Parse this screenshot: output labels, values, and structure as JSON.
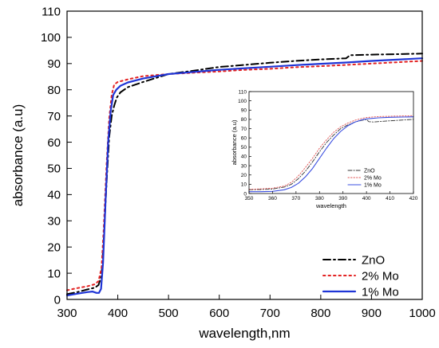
{
  "chart_data": [
    {
      "type": "line",
      "xlabel": "wavelength,nm",
      "ylabel": "absorbance (a.u)",
      "xlim": [
        300,
        1000
      ],
      "ylim": [
        0,
        110
      ],
      "xticks": [
        300,
        400,
        500,
        600,
        700,
        800,
        900,
        1000
      ],
      "yticks": [
        0,
        10,
        20,
        30,
        40,
        50,
        60,
        70,
        80,
        90,
        100,
        110
      ],
      "grid": false,
      "legend_position": "bottom-right",
      "series": [
        {
          "name": "ZnO",
          "style": "dashdot",
          "color": "#000000",
          "points": [
            [
              300,
              2
            ],
            [
              320,
              2.8
            ],
            [
              340,
              3.8
            ],
            [
              355,
              4.5
            ],
            [
              362,
              5.5
            ],
            [
              368,
              9
            ],
            [
              372,
              22
            ],
            [
              378,
              45
            ],
            [
              383,
              62
            ],
            [
              388,
              70
            ],
            [
              393,
              74
            ],
            [
              398,
              77
            ],
            [
              405,
              79
            ],
            [
              420,
              81
            ],
            [
              450,
              83
            ],
            [
              500,
              86
            ],
            [
              550,
              87.3
            ],
            [
              600,
              88.7
            ],
            [
              650,
              89.5
            ],
            [
              700,
              90.3
            ],
            [
              750,
              91
            ],
            [
              800,
              91.6
            ],
            [
              850,
              92
            ],
            [
              858,
              93.2
            ],
            [
              900,
              93.4
            ],
            [
              950,
              93.6
            ],
            [
              1000,
              93.8
            ]
          ]
        },
        {
          "name": "2% Mo",
          "style": "dotted",
          "color": "#e32222",
          "points": [
            [
              300,
              3.5
            ],
            [
              320,
              4.3
            ],
            [
              340,
              5
            ],
            [
              355,
              5.8
            ],
            [
              362,
              7
            ],
            [
              368,
              12
            ],
            [
              372,
              26
            ],
            [
              378,
              52
            ],
            [
              383,
              69
            ],
            [
              388,
              78
            ],
            [
              393,
              82
            ],
            [
              400,
              83
            ],
            [
              420,
              84
            ],
            [
              450,
              85.2
            ],
            [
              500,
              86
            ],
            [
              550,
              86.5
            ],
            [
              600,
              87
            ],
            [
              650,
              87.6
            ],
            [
              700,
              88
            ],
            [
              750,
              88.6
            ],
            [
              800,
              89
            ],
            [
              850,
              89.5
            ],
            [
              900,
              90
            ],
            [
              950,
              90.5
            ],
            [
              1000,
              91
            ]
          ]
        },
        {
          "name": "1% Mo",
          "style": "solid",
          "color": "#1f35d6",
          "points": [
            [
              300,
              1.5
            ],
            [
              320,
              2.2
            ],
            [
              340,
              2.8
            ],
            [
              350,
              3
            ],
            [
              358,
              2.5
            ],
            [
              363,
              2.5
            ],
            [
              367,
              4
            ],
            [
              371,
              14
            ],
            [
              376,
              38
            ],
            [
              381,
              60
            ],
            [
              386,
              72
            ],
            [
              391,
              78
            ],
            [
              397,
              80
            ],
            [
              405,
              81.5
            ],
            [
              420,
              82.8
            ],
            [
              450,
              84.3
            ],
            [
              500,
              86
            ],
            [
              550,
              86.8
            ],
            [
              600,
              87.6
            ],
            [
              650,
              88.2
            ],
            [
              700,
              88.8
            ],
            [
              750,
              89.4
            ],
            [
              800,
              89.9
            ],
            [
              850,
              90.4
            ],
            [
              900,
              91
            ],
            [
              950,
              91.5
            ],
            [
              1000,
              92
            ]
          ]
        }
      ]
    },
    {
      "type": "line",
      "xlabel": "wavelength",
      "ylabel": "absorbance (a.u)",
      "xlim": [
        350,
        420
      ],
      "ylim": [
        0,
        110
      ],
      "xticks": [
        350,
        360,
        370,
        380,
        390,
        400,
        410,
        420
      ],
      "yticks": [
        0,
        10,
        20,
        30,
        40,
        50,
        60,
        70,
        80,
        90,
        100,
        110
      ],
      "grid": false,
      "legend_position": "bottom-right",
      "series": [
        {
          "name": "ZnO",
          "style": "dashdot",
          "color": "#333333",
          "points": [
            [
              350,
              4
            ],
            [
              355,
              4.3
            ],
            [
              360,
              4.8
            ],
            [
              365,
              7
            ],
            [
              368,
              10
            ],
            [
              371,
              16
            ],
            [
              374,
              24
            ],
            [
              377,
              34
            ],
            [
              380,
              45
            ],
            [
              383,
              55
            ],
            [
              386,
              63
            ],
            [
              389,
              70
            ],
            [
              392,
              74
            ],
            [
              395,
              77
            ],
            [
              398,
              79
            ],
            [
              400,
              80
            ],
            [
              401,
              77.5
            ],
            [
              403,
              77.2
            ],
            [
              410,
              78.5
            ],
            [
              420,
              80
            ]
          ]
        },
        {
          "name": "2% Mo",
          "style": "dotted",
          "color": "#e05050",
          "points": [
            [
              350,
              4.5
            ],
            [
              355,
              5
            ],
            [
              360,
              5.8
            ],
            [
              365,
              8
            ],
            [
              368,
              12
            ],
            [
              371,
              19
            ],
            [
              374,
              28
            ],
            [
              377,
              38
            ],
            [
              380,
              49
            ],
            [
              383,
              58
            ],
            [
              386,
              66
            ],
            [
              389,
              72
            ],
            [
              392,
              76
            ],
            [
              395,
              79
            ],
            [
              398,
              81
            ],
            [
              400,
              82
            ],
            [
              405,
              83
            ],
            [
              410,
              83.4
            ],
            [
              420,
              84
            ]
          ]
        },
        {
          "name": "1% Mo",
          "style": "solid",
          "color": "#3b4fe0",
          "points": [
            [
              350,
              2
            ],
            [
              355,
              2
            ],
            [
              360,
              2.3
            ],
            [
              365,
              4
            ],
            [
              368,
              6.5
            ],
            [
              371,
              11
            ],
            [
              374,
              18
            ],
            [
              377,
              27
            ],
            [
              380,
              38
            ],
            [
              383,
              49
            ],
            [
              386,
              59
            ],
            [
              389,
              67
            ],
            [
              392,
              73
            ],
            [
              395,
              77
            ],
            [
              398,
              79.5
            ],
            [
              400,
              80.5
            ],
            [
              405,
              81.6
            ],
            [
              410,
              82.2
            ],
            [
              420,
              82.8
            ]
          ]
        }
      ]
    }
  ]
}
